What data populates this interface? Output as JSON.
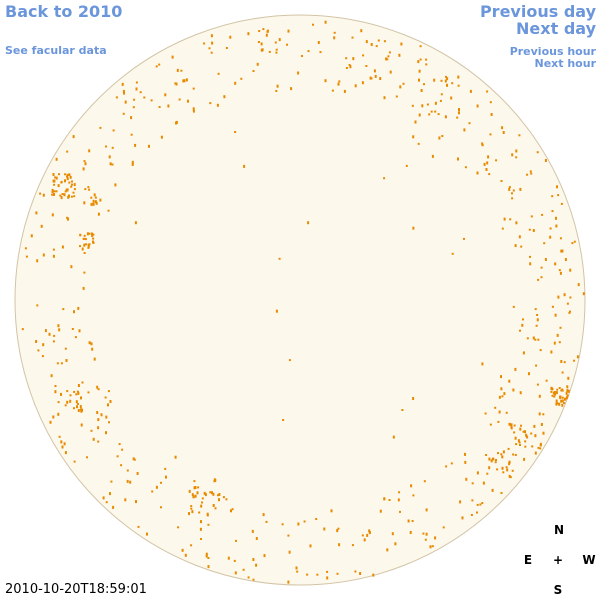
{
  "header": {
    "back": "Back to 2010",
    "facular": "See facular data",
    "previous_day": "Previous day",
    "next_day": "Next day",
    "previous_hour": "Previous hour",
    "next_hour": "Next hour"
  },
  "timestamp": "2010-10-20T18:59:01",
  "compass": {
    "north": "N",
    "east": "E",
    "center": "+",
    "west": "W",
    "south": "S"
  }
}
